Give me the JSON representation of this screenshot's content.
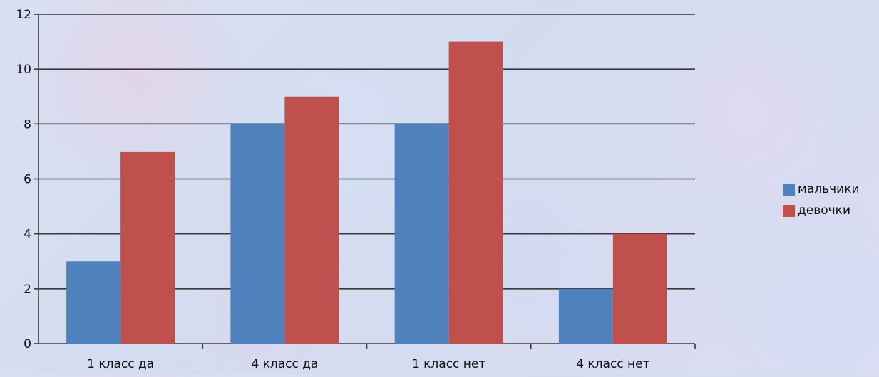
{
  "chart_data": {
    "type": "bar",
    "categories": [
      "1 класс да",
      "4 класс да",
      "1 класс нет",
      "4 класс нет"
    ],
    "series": [
      {
        "name": "мальчики",
        "values": [
          3,
          8,
          8,
          2
        ],
        "color": "#4f81bd"
      },
      {
        "name": "девочки",
        "values": [
          7,
          9,
          11,
          4
        ],
        "color": "#c0504d"
      }
    ],
    "ylim": [
      0,
      12
    ],
    "yticks": [
      "0",
      "2",
      "4",
      "6",
      "8",
      "10",
      "12"
    ],
    "grid": true,
    "legend_position": "right",
    "title": "",
    "xlabel": "",
    "ylabel": ""
  }
}
